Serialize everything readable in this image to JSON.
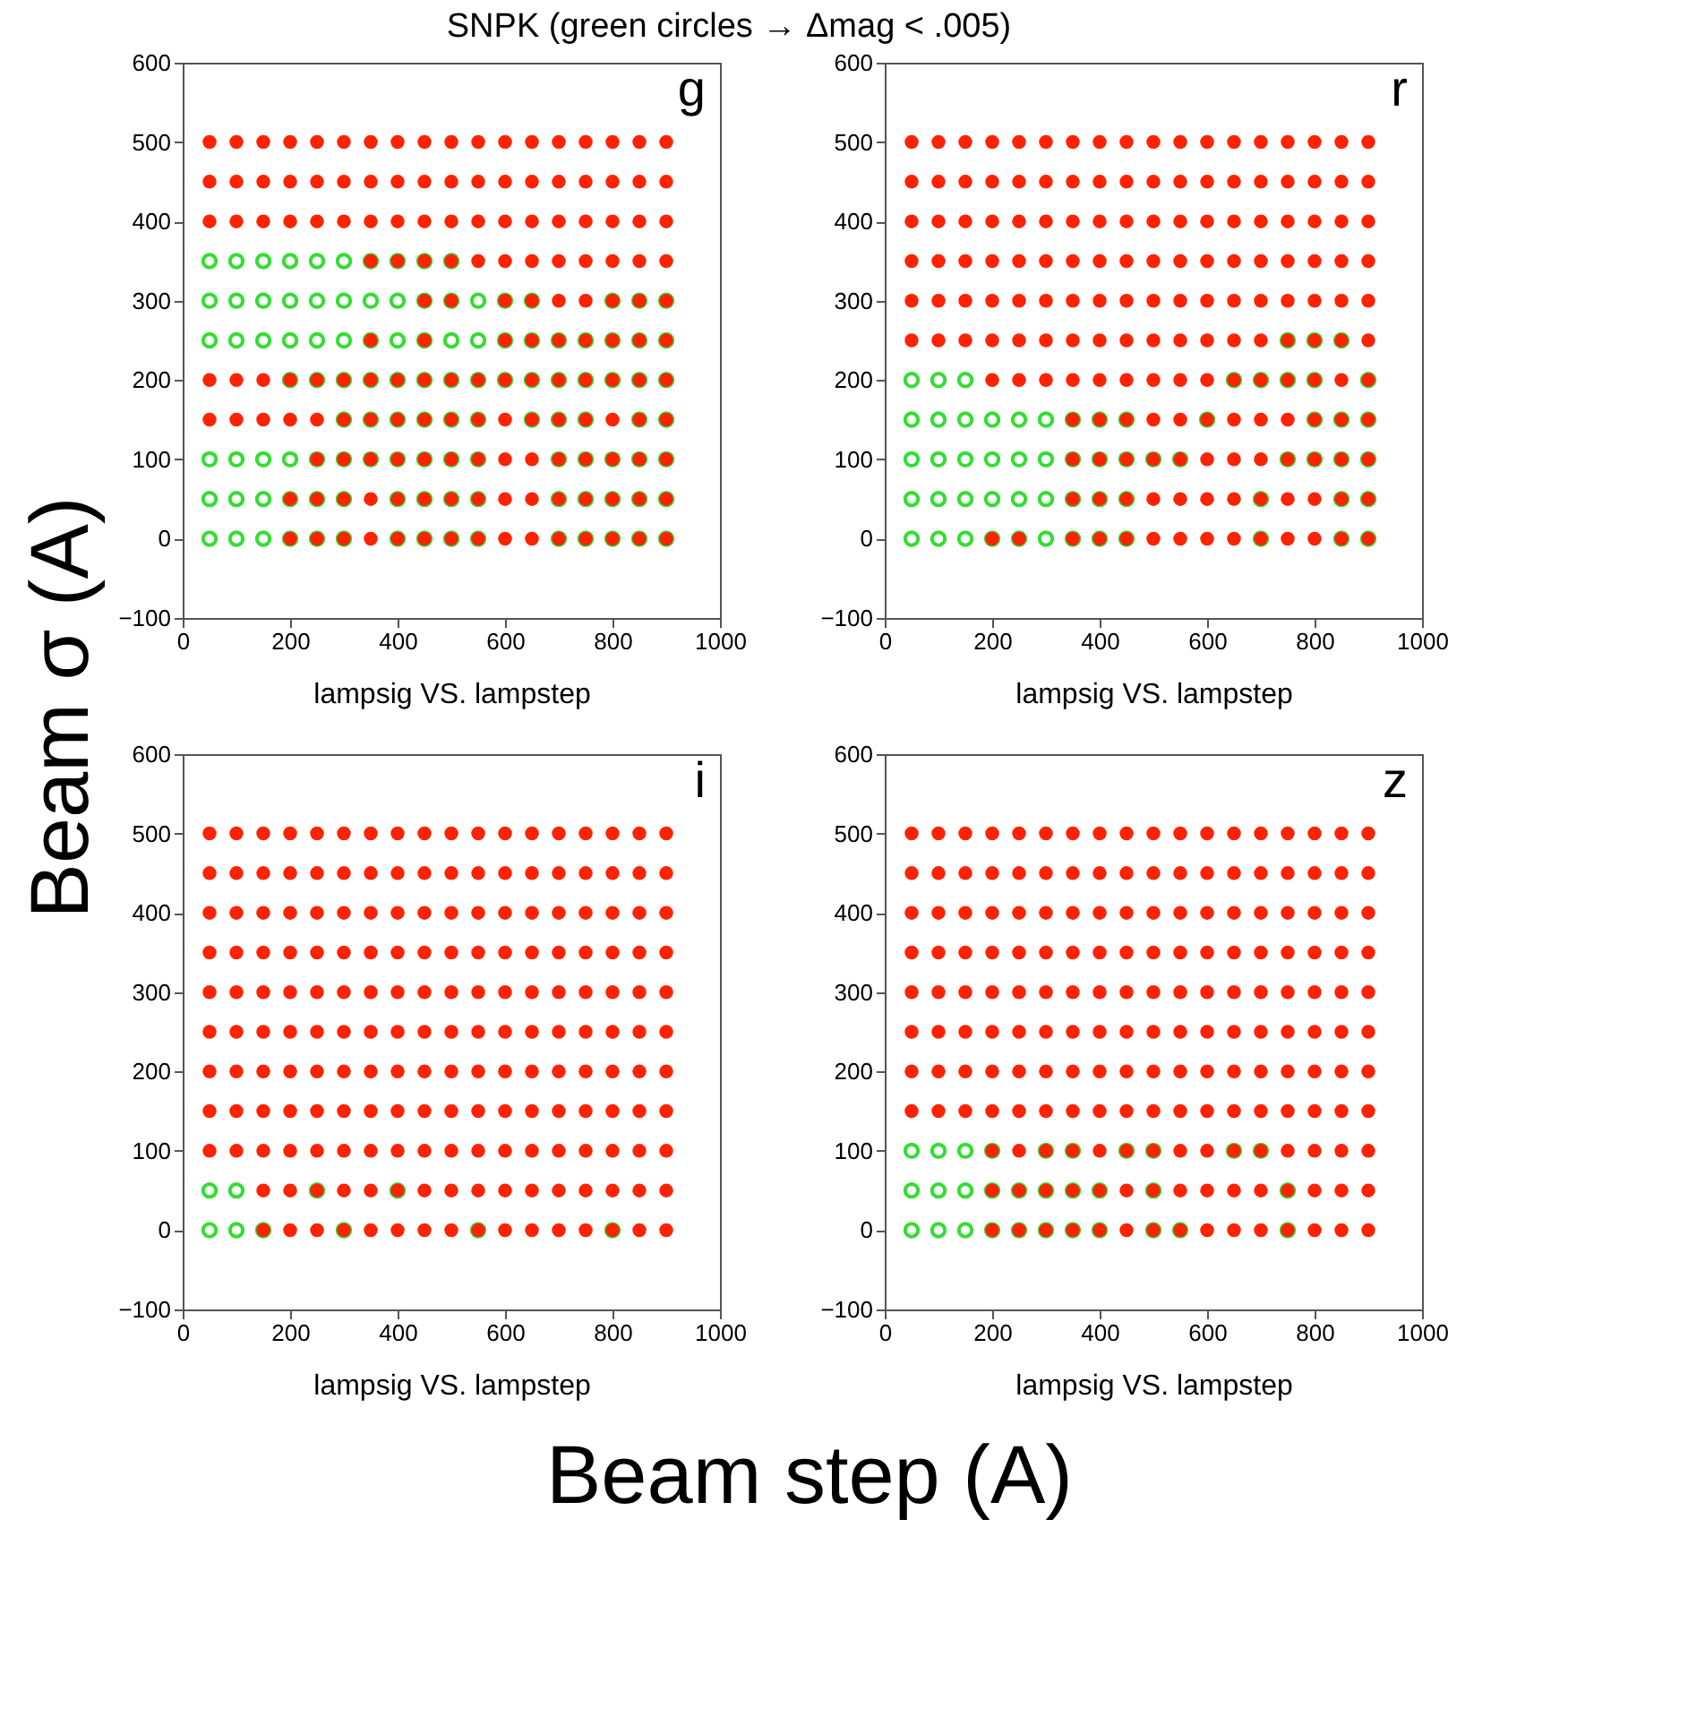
{
  "chart_data": [
    {
      "type": "scatter",
      "title": "SNPK   (green circles → Δmag < .005)",
      "ylabel": "Beam σ (A)",
      "xlabel": "lampsig VS. lampstep",
      "annotations": [
        "g",
        "Beam step (A)"
      ],
      "xlim": [
        0,
        1000
      ],
      "xticks": [
        0,
        200,
        400,
        600,
        800,
        1000
      ],
      "ylim": [
        -100,
        600
      ],
      "yticks": [
        -100,
        0,
        100,
        200,
        300,
        400,
        500,
        600
      ],
      "marker": "circle",
      "series": [
        {
          "color": "#33dd33",
          "x": [
            50,
            100,
            150,
            200,
            250,
            300,
            350,
            400,
            450,
            500,
            50,
            100,
            150,
            200,
            250,
            300,
            350,
            400,
            450,
            500,
            550,
            600,
            650,
            800,
            850,
            900,
            50,
            100,
            150,
            200,
            250,
            300,
            350,
            400,
            450,
            500,
            550,
            600,
            650,
            700,
            750,
            800,
            850,
            900,
            200,
            250,
            300,
            350,
            400,
            450,
            500,
            550,
            600,
            650,
            700,
            750,
            800,
            850,
            900,
            300,
            350,
            400,
            450,
            500,
            550,
            650,
            700,
            750,
            850,
            900,
            50,
            100,
            150,
            200,
            250,
            300,
            350,
            400,
            450,
            500,
            550,
            700,
            750,
            800,
            850,
            900,
            50,
            100,
            150,
            200,
            250,
            300,
            400,
            450,
            500,
            550,
            700,
            750,
            800,
            850,
            900,
            50,
            100,
            150,
            200,
            250,
            300,
            400,
            450,
            500,
            550,
            700,
            750,
            800,
            850,
            900
          ],
          "values": [
            350,
            350,
            350,
            350,
            350,
            350,
            350,
            350,
            350,
            350,
            300,
            300,
            300,
            300,
            300,
            300,
            300,
            300,
            300,
            300,
            300,
            300,
            300,
            300,
            300,
            300,
            250,
            250,
            250,
            250,
            250,
            250,
            250,
            250,
            250,
            250,
            250,
            250,
            250,
            250,
            250,
            250,
            250,
            250,
            200,
            200,
            200,
            200,
            200,
            200,
            200,
            200,
            200,
            200,
            200,
            200,
            200,
            200,
            200,
            150,
            150,
            150,
            150,
            150,
            150,
            150,
            150,
            150,
            150,
            150,
            100,
            100,
            100,
            100,
            100,
            100,
            100,
            100,
            100,
            100,
            100,
            100,
            100,
            100,
            100,
            100,
            50,
            50,
            50,
            50,
            50,
            50,
            50,
            50,
            50,
            50,
            50,
            50,
            50,
            50,
            50,
            0,
            0,
            0,
            0,
            0,
            0,
            0,
            0,
            0,
            0,
            0,
            0,
            0,
            0,
            0
          ]
        },
        {
          "color": "#ff2200",
          "x": [
            50,
            100,
            150,
            200,
            250,
            300,
            350,
            400,
            450,
            500,
            550,
            600,
            650,
            700,
            750,
            800,
            850,
            900,
            50,
            100,
            150,
            200,
            250,
            300,
            350,
            400,
            450,
            500,
            550,
            600,
            650,
            700,
            750,
            800,
            850,
            900,
            50,
            100,
            150,
            200,
            250,
            300,
            350,
            400,
            450,
            500,
            550,
            600,
            650,
            700,
            750,
            800,
            850,
            900,
            350,
            400,
            450,
            500,
            550,
            600,
            650,
            700,
            750,
            800,
            850,
            900,
            450,
            500,
            600,
            650,
            700,
            750,
            800,
            850,
            900,
            350,
            450,
            600,
            650,
            700,
            750,
            800,
            850,
            900,
            50,
            100,
            150,
            200,
            250,
            300,
            350,
            400,
            450,
            500,
            550,
            600,
            650,
            700,
            750,
            800,
            850,
            900,
            50,
            100,
            150,
            200,
            250,
            300,
            350,
            400,
            450,
            500,
            550,
            600,
            650,
            700,
            750,
            800,
            850,
            900,
            250,
            300,
            350,
            400,
            450,
            500,
            550,
            600,
            650,
            700,
            750,
            800,
            850,
            900,
            200,
            250,
            300,
            350,
            400,
            450,
            500,
            550,
            600,
            650,
            700,
            750,
            800,
            850,
            900,
            200,
            250,
            300,
            350,
            400,
            450,
            500,
            550,
            600,
            650,
            700,
            750,
            800,
            850,
            900
          ],
          "values": [
            500,
            500,
            500,
            500,
            500,
            500,
            500,
            500,
            500,
            500,
            500,
            500,
            500,
            500,
            500,
            500,
            500,
            500,
            450,
            450,
            450,
            450,
            450,
            450,
            450,
            450,
            450,
            450,
            450,
            450,
            450,
            450,
            450,
            450,
            450,
            450,
            400,
            400,
            400,
            400,
            400,
            400,
            400,
            400,
            400,
            400,
            400,
            400,
            400,
            400,
            400,
            400,
            400,
            400,
            350,
            350,
            350,
            350,
            350,
            350,
            350,
            350,
            350,
            350,
            350,
            350,
            300,
            300,
            300,
            300,
            300,
            300,
            300,
            300,
            300,
            250,
            250,
            250,
            250,
            250,
            250,
            250,
            250,
            250,
            200,
            200,
            200,
            200,
            200,
            200,
            200,
            200,
            200,
            200,
            200,
            200,
            200,
            200,
            200,
            200,
            200,
            200,
            150,
            150,
            150,
            150,
            150,
            150,
            150,
            150,
            150,
            150,
            150,
            150,
            150,
            150,
            150,
            150,
            150,
            150,
            100,
            100,
            100,
            100,
            100,
            100,
            100,
            100,
            100,
            100,
            100,
            100,
            100,
            100,
            50,
            50,
            50,
            50,
            50,
            50,
            50,
            50,
            50,
            50,
            50,
            50,
            50,
            50,
            50,
            0,
            0,
            0,
            0,
            0,
            0,
            0,
            0,
            0,
            0,
            0,
            0,
            0,
            0,
            0
          ]
        }
      ]
    },
    {
      "type": "scatter",
      "xlabel": "lampsig VS. lampstep",
      "annotations": [
        "r"
      ],
      "xlim": [
        0,
        1000
      ],
      "xticks": [
        0,
        200,
        400,
        600,
        800,
        1000
      ],
      "ylim": [
        -100,
        600
      ],
      "yticks": [
        -100,
        0,
        100,
        200,
        300,
        400,
        500,
        600
      ],
      "marker": "circle",
      "series": [
        {
          "color": "#33dd33",
          "x": [
            750,
            800,
            850,
            50,
            100,
            150,
            650,
            700,
            750,
            800,
            900,
            50,
            100,
            150,
            200,
            250,
            300,
            350,
            400,
            450,
            600,
            800,
            850,
            900,
            50,
            100,
            150,
            200,
            250,
            300,
            350,
            400,
            450,
            500,
            550,
            750,
            800,
            850,
            900,
            50,
            100,
            150,
            200,
            250,
            300,
            350,
            400,
            450,
            700,
            850,
            900,
            50,
            100,
            150,
            200,
            250,
            300,
            350,
            400,
            450,
            700,
            850,
            900
          ],
          "values": [
            250,
            250,
            250,
            200,
            200,
            200,
            200,
            200,
            200,
            200,
            200,
            150,
            150,
            150,
            150,
            150,
            150,
            150,
            150,
            150,
            150,
            150,
            150,
            150,
            100,
            100,
            100,
            100,
            100,
            100,
            100,
            100,
            100,
            100,
            100,
            100,
            100,
            100,
            100,
            50,
            50,
            50,
            50,
            50,
            50,
            50,
            50,
            50,
            50,
            50,
            50,
            0,
            0,
            0,
            0,
            0,
            0,
            0,
            0,
            0,
            0,
            0,
            0
          ]
        },
        {
          "color": "#ff2200",
          "x": [
            50,
            100,
            150,
            200,
            250,
            300,
            350,
            400,
            450,
            500,
            550,
            600,
            650,
            700,
            750,
            800,
            850,
            900,
            50,
            100,
            150,
            200,
            250,
            300,
            350,
            400,
            450,
            500,
            550,
            600,
            650,
            700,
            750,
            800,
            850,
            900,
            50,
            100,
            150,
            200,
            250,
            300,
            350,
            400,
            450,
            500,
            550,
            600,
            650,
            700,
            750,
            800,
            850,
            900,
            50,
            100,
            150,
            200,
            250,
            300,
            350,
            400,
            450,
            500,
            550,
            600,
            650,
            700,
            750,
            800,
            850,
            900,
            50,
            100,
            150,
            200,
            250,
            300,
            350,
            400,
            450,
            500,
            550,
            600,
            650,
            700,
            750,
            800,
            850,
            900,
            50,
            100,
            150,
            200,
            250,
            300,
            350,
            400,
            450,
            500,
            550,
            600,
            650,
            700,
            750,
            800,
            850,
            900,
            200,
            250,
            300,
            350,
            400,
            450,
            500,
            550,
            600,
            650,
            700,
            750,
            800,
            850,
            900,
            350,
            400,
            450,
            500,
            550,
            600,
            650,
            700,
            750,
            800,
            850,
            900,
            350,
            400,
            450,
            500,
            550,
            600,
            650,
            700,
            750,
            800,
            850,
            900,
            350,
            400,
            450,
            500,
            550,
            600,
            650,
            700,
            750,
            800,
            850,
            900,
            200,
            250,
            350,
            400,
            450,
            500,
            550,
            600,
            650,
            700,
            750,
            800,
            850,
            900
          ],
          "values": [
            500,
            500,
            500,
            500,
            500,
            500,
            500,
            500,
            500,
            500,
            500,
            500,
            500,
            500,
            500,
            500,
            500,
            500,
            450,
            450,
            450,
            450,
            450,
            450,
            450,
            450,
            450,
            450,
            450,
            450,
            450,
            450,
            450,
            450,
            450,
            450,
            400,
            400,
            400,
            400,
            400,
            400,
            400,
            400,
            400,
            400,
            400,
            400,
            400,
            400,
            400,
            400,
            400,
            400,
            350,
            350,
            350,
            350,
            350,
            350,
            350,
            350,
            350,
            350,
            350,
            350,
            350,
            350,
            350,
            350,
            350,
            350,
            300,
            300,
            300,
            300,
            300,
            300,
            300,
            300,
            300,
            300,
            300,
            300,
            300,
            300,
            300,
            300,
            300,
            300,
            250,
            250,
            250,
            250,
            250,
            250,
            250,
            250,
            250,
            250,
            250,
            250,
            250,
            250,
            250,
            250,
            250,
            250,
            200,
            200,
            200,
            200,
            200,
            200,
            200,
            200,
            200,
            200,
            200,
            200,
            200,
            200,
            200,
            150,
            150,
            150,
            150,
            150,
            150,
            150,
            150,
            150,
            150,
            150,
            150,
            100,
            100,
            100,
            100,
            100,
            100,
            100,
            100,
            100,
            100,
            100,
            100,
            50,
            50,
            50,
            50,
            50,
            50,
            50,
            50,
            50,
            50,
            50,
            50,
            0,
            0,
            0,
            0,
            0,
            0,
            0,
            0,
            0,
            0,
            0,
            0,
            0,
            0
          ]
        }
      ]
    },
    {
      "type": "scatter",
      "xlabel": "lampsig VS. lampstep",
      "annotations": [
        "i"
      ],
      "xlim": [
        0,
        1000
      ],
      "xticks": [
        0,
        200,
        400,
        600,
        800,
        1000
      ],
      "ylim": [
        -100,
        600
      ],
      "yticks": [
        -100,
        0,
        100,
        200,
        300,
        400,
        500,
        600
      ],
      "marker": "circle",
      "series": [
        {
          "color": "#33dd33",
          "x": [
            50,
            100,
            250,
            400,
            50,
            100,
            150,
            300,
            550,
            800
          ],
          "values": [
            50,
            50,
            50,
            50,
            0,
            0,
            0,
            0,
            0,
            0
          ]
        },
        {
          "color": "#ff2200",
          "x": [
            50,
            100,
            150,
            200,
            250,
            300,
            350,
            400,
            450,
            500,
            550,
            600,
            650,
            700,
            750,
            800,
            850,
            900,
            50,
            100,
            150,
            200,
            250,
            300,
            350,
            400,
            450,
            500,
            550,
            600,
            650,
            700,
            750,
            800,
            850,
            900,
            50,
            100,
            150,
            200,
            250,
            300,
            350,
            400,
            450,
            500,
            550,
            600,
            650,
            700,
            750,
            800,
            850,
            900,
            50,
            100,
            150,
            200,
            250,
            300,
            350,
            400,
            450,
            500,
            550,
            600,
            650,
            700,
            750,
            800,
            850,
            900,
            50,
            100,
            150,
            200,
            250,
            300,
            350,
            400,
            450,
            500,
            550,
            600,
            650,
            700,
            750,
            800,
            850,
            900,
            50,
            100,
            150,
            200,
            250,
            300,
            350,
            400,
            450,
            500,
            550,
            600,
            650,
            700,
            750,
            800,
            850,
            900,
            50,
            100,
            150,
            200,
            250,
            300,
            350,
            400,
            450,
            500,
            550,
            600,
            650,
            700,
            750,
            800,
            850,
            900,
            50,
            100,
            150,
            200,
            250,
            300,
            350,
            400,
            450,
            500,
            550,
            600,
            650,
            700,
            750,
            800,
            850,
            900,
            50,
            100,
            150,
            200,
            250,
            300,
            350,
            400,
            450,
            500,
            550,
            600,
            650,
            700,
            750,
            800,
            850,
            900,
            150,
            200,
            250,
            300,
            350,
            400,
            450,
            500,
            550,
            600,
            650,
            700,
            750,
            800,
            850,
            900,
            150,
            200,
            250,
            300,
            350,
            400,
            450,
            500,
            550,
            600,
            650,
            700,
            750,
            800,
            850,
            900
          ],
          "values": [
            500,
            500,
            500,
            500,
            500,
            500,
            500,
            500,
            500,
            500,
            500,
            500,
            500,
            500,
            500,
            500,
            500,
            500,
            450,
            450,
            450,
            450,
            450,
            450,
            450,
            450,
            450,
            450,
            450,
            450,
            450,
            450,
            450,
            450,
            450,
            450,
            400,
            400,
            400,
            400,
            400,
            400,
            400,
            400,
            400,
            400,
            400,
            400,
            400,
            400,
            400,
            400,
            400,
            400,
            350,
            350,
            350,
            350,
            350,
            350,
            350,
            350,
            350,
            350,
            350,
            350,
            350,
            350,
            350,
            350,
            350,
            350,
            300,
            300,
            300,
            300,
            300,
            300,
            300,
            300,
            300,
            300,
            300,
            300,
            300,
            300,
            300,
            300,
            300,
            300,
            250,
            250,
            250,
            250,
            250,
            250,
            250,
            250,
            250,
            250,
            250,
            250,
            250,
            250,
            250,
            250,
            250,
            250,
            200,
            200,
            200,
            200,
            200,
            200,
            200,
            200,
            200,
            200,
            200,
            200,
            200,
            200,
            200,
            200,
            200,
            200,
            150,
            150,
            150,
            150,
            150,
            150,
            150,
            150,
            150,
            150,
            150,
            150,
            150,
            150,
            150,
            150,
            150,
            150,
            100,
            100,
            100,
            100,
            100,
            100,
            100,
            100,
            100,
            100,
            100,
            100,
            100,
            100,
            100,
            100,
            100,
            100,
            50,
            50,
            50,
            50,
            50,
            50,
            50,
            50,
            50,
            50,
            50,
            50,
            50,
            50,
            50,
            50,
            0,
            0,
            0,
            0,
            0,
            0,
            0,
            0,
            0,
            0,
            0,
            0,
            0,
            0,
            0,
            0
          ]
        }
      ]
    },
    {
      "type": "scatter",
      "xlabel": "lampsig VS. lampstep",
      "annotations": [
        "z"
      ],
      "xlim": [
        0,
        1000
      ],
      "xticks": [
        0,
        200,
        400,
        600,
        800,
        1000
      ],
      "ylim": [
        -100,
        600
      ],
      "yticks": [
        -100,
        0,
        100,
        200,
        300,
        400,
        500,
        600
      ],
      "marker": "circle",
      "series": [
        {
          "color": "#33dd33",
          "x": [
            50,
            100,
            150,
            200,
            300,
            350,
            450,
            500,
            650,
            700,
            50,
            100,
            150,
            200,
            250,
            300,
            350,
            400,
            500,
            750,
            50,
            100,
            150,
            200,
            250,
            300,
            350,
            400,
            500,
            550,
            750
          ],
          "values": [
            100,
            100,
            100,
            100,
            100,
            100,
            100,
            100,
            100,
            100,
            50,
            50,
            50,
            50,
            50,
            50,
            50,
            50,
            50,
            50,
            0,
            0,
            0,
            0,
            0,
            0,
            0,
            0,
            0,
            0,
            0
          ]
        },
        {
          "color": "#ff2200",
          "x": [
            50,
            100,
            150,
            200,
            250,
            300,
            350,
            400,
            450,
            500,
            550,
            600,
            650,
            700,
            750,
            800,
            850,
            900,
            50,
            100,
            150,
            200,
            250,
            300,
            350,
            400,
            450,
            500,
            550,
            600,
            650,
            700,
            750,
            800,
            850,
            900,
            50,
            100,
            150,
            200,
            250,
            300,
            350,
            400,
            450,
            500,
            550,
            600,
            650,
            700,
            750,
            800,
            850,
            900,
            50,
            100,
            150,
            200,
            250,
            300,
            350,
            400,
            450,
            500,
            550,
            600,
            650,
            700,
            750,
            800,
            850,
            900,
            50,
            100,
            150,
            200,
            250,
            300,
            350,
            400,
            450,
            500,
            550,
            600,
            650,
            700,
            750,
            800,
            850,
            900,
            50,
            100,
            150,
            200,
            250,
            300,
            350,
            400,
            450,
            500,
            550,
            600,
            650,
            700,
            750,
            800,
            850,
            900,
            50,
            100,
            150,
            200,
            250,
            300,
            350,
            400,
            450,
            500,
            550,
            600,
            650,
            700,
            750,
            800,
            850,
            900,
            50,
            100,
            150,
            200,
            250,
            300,
            350,
            400,
            450,
            500,
            550,
            600,
            650,
            700,
            750,
            800,
            850,
            900,
            200,
            250,
            300,
            350,
            400,
            450,
            500,
            550,
            600,
            650,
            700,
            750,
            800,
            850,
            900,
            200,
            250,
            300,
            350,
            400,
            450,
            500,
            550,
            600,
            650,
            700,
            750,
            800,
            850,
            900,
            200,
            250,
            300,
            350,
            400,
            450,
            500,
            550,
            600,
            650,
            700,
            750,
            800,
            850,
            900
          ],
          "values": [
            500,
            500,
            500,
            500,
            500,
            500,
            500,
            500,
            500,
            500,
            500,
            500,
            500,
            500,
            500,
            500,
            500,
            500,
            450,
            450,
            450,
            450,
            450,
            450,
            450,
            450,
            450,
            450,
            450,
            450,
            450,
            450,
            450,
            450,
            450,
            450,
            400,
            400,
            400,
            400,
            400,
            400,
            400,
            400,
            400,
            400,
            400,
            400,
            400,
            400,
            400,
            400,
            400,
            400,
            350,
            350,
            350,
            350,
            350,
            350,
            350,
            350,
            350,
            350,
            350,
            350,
            350,
            350,
            350,
            350,
            350,
            350,
            300,
            300,
            300,
            300,
            300,
            300,
            300,
            300,
            300,
            300,
            300,
            300,
            300,
            300,
            300,
            300,
            300,
            300,
            250,
            250,
            250,
            250,
            250,
            250,
            250,
            250,
            250,
            250,
            250,
            250,
            250,
            250,
            250,
            250,
            250,
            250,
            200,
            200,
            200,
            200,
            200,
            200,
            200,
            200,
            200,
            200,
            200,
            200,
            200,
            200,
            200,
            200,
            200,
            200,
            150,
            150,
            150,
            150,
            150,
            150,
            150,
            150,
            150,
            150,
            150,
            150,
            150,
            150,
            150,
            150,
            150,
            150,
            100,
            100,
            100,
            100,
            100,
            100,
            100,
            100,
            100,
            100,
            100,
            100,
            100,
            100,
            100,
            50,
            50,
            50,
            50,
            50,
            50,
            50,
            50,
            50,
            50,
            50,
            50,
            50,
            50,
            50,
            0,
            0,
            0,
            0,
            0,
            0,
            0,
            0,
            0,
            0,
            0,
            0,
            0,
            0,
            0
          ]
        }
      ]
    }
  ]
}
